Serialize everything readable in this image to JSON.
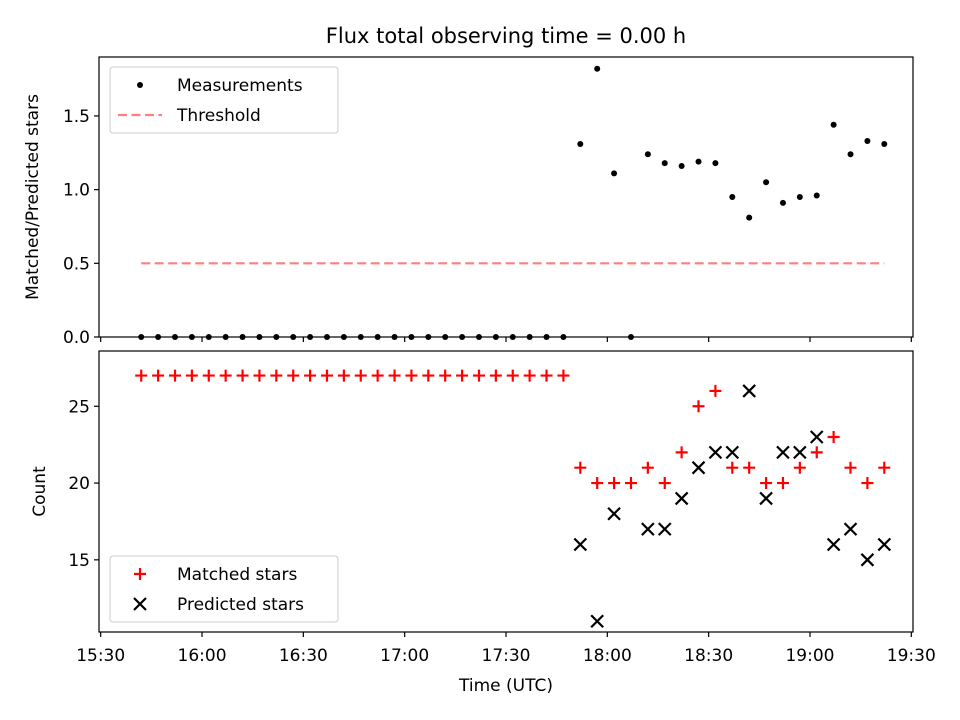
{
  "chart_data": {
    "type": "scatter",
    "title": "Flux total observing time = 0.00 h",
    "xlabel": "Time (UTC)",
    "x_tick_labels": [
      "15:30",
      "16:00",
      "16:30",
      "17:00",
      "17:30",
      "18:00",
      "18:30",
      "19:00",
      "19:30"
    ],
    "x_ticks_min": [
      930,
      960,
      990,
      1020,
      1050,
      1080,
      1110,
      1140,
      1170
    ],
    "xlim_min": [
      929.5,
      1170.5
    ],
    "x_min": [
      942,
      947,
      952,
      957,
      962,
      967,
      972,
      977,
      982,
      987,
      992,
      997,
      1002,
      1007,
      1012,
      1017,
      1022,
      1027,
      1032,
      1037,
      1042,
      1047,
      1052,
      1057,
      1062,
      1067,
      1072,
      1077,
      1082,
      1087,
      1092,
      1097,
      1102,
      1107,
      1112,
      1117,
      1122,
      1127,
      1132,
      1137,
      1142,
      1147,
      1152,
      1157,
      1162
    ],
    "panels": [
      {
        "ylabel": "Matched/Predicted stars",
        "ylim": [
          0,
          1.9
        ],
        "yticks": [
          0.0,
          0.5,
          1.0,
          1.5
        ],
        "ytick_labels": [
          "0.0",
          "0.5",
          "1.0",
          "1.5"
        ],
        "legend": {
          "location": "upper left"
        },
        "series": [
          {
            "name": "Measurements",
            "marker": "dot",
            "color": "#000000",
            "values": [
              0,
              0,
              0,
              0,
              0,
              0,
              0,
              0,
              0,
              0,
              0,
              0,
              0,
              0,
              0,
              0,
              0,
              0,
              0,
              0,
              0,
              0,
              0,
              0,
              0,
              0,
              1.31,
              1.82,
              1.11,
              0,
              1.24,
              1.18,
              1.16,
              1.19,
              1.18,
              0.95,
              0.81,
              1.05,
              0.91,
              0.95,
              0.96,
              1.44,
              1.24,
              1.33,
              1.31
            ]
          },
          {
            "name": "Threshold",
            "style": "dashed",
            "color": "#ff7f7f",
            "x_range_min": [
              942,
              1162
            ],
            "value": 0.5
          }
        ]
      },
      {
        "ylabel": "Count",
        "ylim": [
          10.3,
          28.6
        ],
        "yticks": [
          15,
          20,
          25
        ],
        "ytick_labels": [
          "15",
          "20",
          "25"
        ],
        "legend": {
          "location": "lower left"
        },
        "series": [
          {
            "name": "Matched stars",
            "marker": "plus",
            "color": "#ff0000",
            "values": [
              27,
              27,
              27,
              27,
              27,
              27,
              27,
              27,
              27,
              27,
              27,
              27,
              27,
              27,
              27,
              27,
              27,
              27,
              27,
              27,
              27,
              27,
              27,
              27,
              27,
              27,
              21,
              20,
              20,
              20,
              21,
              20,
              22,
              25,
              26,
              21,
              21,
              20,
              20,
              21,
              22,
              23,
              21,
              20,
              21
            ]
          },
          {
            "name": "Predicted stars",
            "marker": "x",
            "color": "#000000",
            "values": [
              null,
              null,
              null,
              null,
              null,
              null,
              null,
              null,
              null,
              null,
              null,
              null,
              null,
              null,
              null,
              null,
              null,
              null,
              null,
              null,
              null,
              null,
              null,
              null,
              null,
              null,
              16,
              11,
              18,
              null,
              17,
              17,
              19,
              21,
              22,
              22,
              26,
              19,
              22,
              22,
              23,
              16,
              17,
              15,
              16
            ]
          }
        ]
      }
    ]
  }
}
